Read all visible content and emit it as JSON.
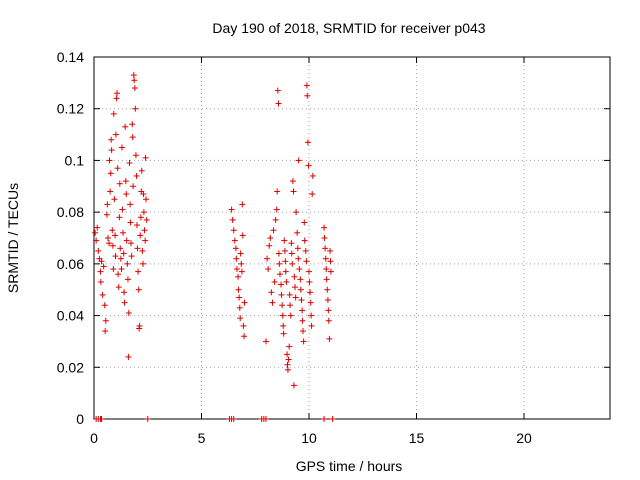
{
  "chart_data": {
    "type": "scatter",
    "title": "Day 190 of 2018, SRMTID for receiver p043",
    "xlabel": "GPS time / hours",
    "ylabel": "SRMTID / TECUs",
    "xlim": [
      0,
      24
    ],
    "ylim": [
      0,
      0.14
    ],
    "xticks": [
      0,
      5,
      10,
      15,
      20
    ],
    "xtick_labels": [
      "0",
      "5",
      "10",
      "15",
      "20"
    ],
    "yticks": [
      0,
      0.02,
      0.04,
      0.06,
      0.08,
      0.1,
      0.12,
      0.14
    ],
    "ytick_labels": [
      "0",
      "0.02",
      "0.04",
      "0.06",
      "0.08",
      "0.1",
      "0.12",
      "0.14"
    ],
    "grid": true,
    "marker": "+",
    "marker_color": "#dd0000",
    "series": [
      {
        "name": "SRMTID p043",
        "points": [
          [
            0.05,
            0.072
          ],
          [
            0.1,
            0.069
          ],
          [
            0.15,
            0.074
          ],
          [
            0.2,
            0.065
          ],
          [
            0.25,
            0.062
          ],
          [
            0.3,
            0.057
          ],
          [
            0.32,
            0.053
          ],
          [
            0.35,
            0.061
          ],
          [
            0.4,
            0.048
          ],
          [
            0.45,
            0.059
          ],
          [
            0.5,
            0.044
          ],
          [
            0.52,
            0.034
          ],
          [
            0.55,
            0.038
          ],
          [
            0.6,
            0.079
          ],
          [
            0.62,
            0.083
          ],
          [
            0.65,
            0.07
          ],
          [
            0.7,
            0.068
          ],
          [
            0.72,
            0.1
          ],
          [
            0.75,
            0.088
          ],
          [
            0.78,
            0.095
          ],
          [
            0.8,
            0.108
          ],
          [
            0.82,
            0.104
          ],
          [
            0.85,
            0.073
          ],
          [
            0.88,
            0.067
          ],
          [
            0.9,
            0.058
          ],
          [
            0.92,
            0.118
          ],
          [
            0.95,
            0.085
          ],
          [
            0.98,
            0.071
          ],
          [
            1.0,
            0.063
          ],
          [
            1.02,
            0.11
          ],
          [
            1.05,
            0.124
          ],
          [
            1.07,
            0.126
          ],
          [
            1.1,
            0.097
          ],
          [
            1.12,
            0.056
          ],
          [
            1.15,
            0.051
          ],
          [
            1.18,
            0.078
          ],
          [
            1.2,
            0.091
          ],
          [
            1.22,
            0.066
          ],
          [
            1.25,
            0.062
          ],
          [
            1.28,
            0.058
          ],
          [
            1.3,
            0.105
          ],
          [
            1.32,
            0.081
          ],
          [
            1.35,
            0.072
          ],
          [
            1.38,
            0.064
          ],
          [
            1.4,
            0.049
          ],
          [
            1.42,
            0.045
          ],
          [
            1.45,
            0.113
          ],
          [
            1.48,
            0.092
          ],
          [
            1.5,
            0.087
          ],
          [
            1.52,
            0.069
          ],
          [
            1.55,
            0.06
          ],
          [
            1.58,
            0.054
          ],
          [
            1.6,
            0.024
          ],
          [
            1.62,
            0.041
          ],
          [
            1.65,
            0.099
          ],
          [
            1.68,
            0.083
          ],
          [
            1.7,
            0.076
          ],
          [
            1.72,
            0.068
          ],
          [
            1.75,
            0.063
          ],
          [
            1.78,
            0.114
          ],
          [
            1.8,
            0.109
          ],
          [
            1.82,
            0.09
          ],
          [
            1.85,
            0.133
          ],
          [
            1.87,
            0.131
          ],
          [
            1.9,
            0.128
          ],
          [
            1.92,
            0.12
          ],
          [
            1.95,
            0.102
          ],
          [
            1.98,
            0.094
          ],
          [
            2.0,
            0.075
          ],
          [
            2.02,
            0.066
          ],
          [
            2.05,
            0.057
          ],
          [
            2.08,
            0.05
          ],
          [
            2.1,
            0.035
          ],
          [
            2.12,
            0.036
          ],
          [
            2.15,
            0.071
          ],
          [
            2.18,
            0.078
          ],
          [
            2.2,
            0.088
          ],
          [
            2.22,
            0.096
          ],
          [
            2.25,
            0.065
          ],
          [
            2.28,
            0.06
          ],
          [
            2.3,
            0.087
          ],
          [
            2.32,
            0.08
          ],
          [
            2.35,
            0.073
          ],
          [
            2.38,
            0.069
          ],
          [
            2.4,
            0.101
          ],
          [
            2.42,
            0.085
          ],
          [
            2.45,
            0.077
          ],
          [
            6.4,
            0.081
          ],
          [
            6.45,
            0.077
          ],
          [
            6.5,
            0.073
          ],
          [
            6.55,
            0.069
          ],
          [
            6.6,
            0.066
          ],
          [
            6.62,
            0.062
          ],
          [
            6.65,
            0.058
          ],
          [
            6.7,
            0.055
          ],
          [
            6.72,
            0.05
          ],
          [
            6.75,
            0.047
          ],
          [
            6.78,
            0.043
          ],
          [
            6.8,
            0.039
          ],
          [
            6.82,
            0.064
          ],
          [
            6.85,
            0.06
          ],
          [
            6.88,
            0.057
          ],
          [
            6.9,
            0.083
          ],
          [
            6.92,
            0.071
          ],
          [
            6.95,
            0.036
          ],
          [
            6.98,
            0.032
          ],
          [
            7.0,
            0.045
          ],
          [
            8.0,
            0.03
          ],
          [
            8.05,
            0.062
          ],
          [
            8.1,
            0.058
          ],
          [
            8.15,
            0.067
          ],
          [
            8.2,
            0.07
          ],
          [
            8.25,
            0.049
          ],
          [
            8.3,
            0.045
          ],
          [
            8.35,
            0.073
          ],
          [
            8.4,
            0.053
          ],
          [
            8.45,
            0.077
          ],
          [
            8.5,
            0.081
          ],
          [
            8.52,
            0.088
          ],
          [
            8.55,
            0.127
          ],
          [
            8.58,
            0.122
          ],
          [
            8.6,
            0.064
          ],
          [
            8.62,
            0.06
          ],
          [
            8.65,
            0.056
          ],
          [
            8.7,
            0.052
          ],
          [
            8.72,
            0.048
          ],
          [
            8.75,
            0.044
          ],
          [
            8.78,
            0.04
          ],
          [
            8.8,
            0.036
          ],
          [
            8.82,
            0.033
          ],
          [
            8.85,
            0.069
          ],
          [
            8.88,
            0.065
          ],
          [
            8.9,
            0.061
          ],
          [
            8.92,
            0.057
          ],
          [
            8.95,
            0.053
          ],
          [
            8.98,
            0.025
          ],
          [
            9.0,
            0.021
          ],
          [
            9.02,
            0.019
          ],
          [
            9.05,
            0.023
          ],
          [
            9.08,
            0.028
          ],
          [
            9.1,
            0.048
          ],
          [
            9.12,
            0.044
          ],
          [
            9.15,
            0.04
          ],
          [
            9.18,
            0.068
          ],
          [
            9.2,
            0.064
          ],
          [
            9.22,
            0.06
          ],
          [
            9.25,
            0.092
          ],
          [
            9.28,
            0.088
          ],
          [
            9.3,
            0.013
          ],
          [
            9.32,
            0.055
          ],
          [
            9.35,
            0.051
          ],
          [
            9.38,
            0.047
          ],
          [
            9.4,
            0.08
          ],
          [
            9.45,
            0.072
          ],
          [
            9.48,
            0.066
          ],
          [
            9.5,
            0.062
          ],
          [
            9.52,
            0.1
          ],
          [
            9.55,
            0.058
          ],
          [
            9.6,
            0.054
          ],
          [
            9.62,
            0.05
          ],
          [
            9.65,
            0.046
          ],
          [
            9.68,
            0.042
          ],
          [
            9.7,
            0.038
          ],
          [
            9.72,
            0.034
          ],
          [
            9.75,
            0.03
          ],
          [
            9.78,
            0.076
          ],
          [
            9.8,
            0.069
          ],
          [
            9.85,
            0.065
          ],
          [
            9.88,
            0.061
          ],
          [
            9.9,
            0.129
          ],
          [
            9.92,
            0.125
          ],
          [
            9.95,
            0.107
          ],
          [
            9.98,
            0.098
          ],
          [
            10.0,
            0.057
          ],
          [
            10.02,
            0.053
          ],
          [
            10.05,
            0.049
          ],
          [
            10.08,
            0.045
          ],
          [
            10.1,
            0.04
          ],
          [
            10.12,
            0.036
          ],
          [
            10.15,
            0.087
          ],
          [
            10.18,
            0.094
          ],
          [
            10.7,
            0.074
          ],
          [
            10.72,
            0.07
          ],
          [
            10.75,
            0.066
          ],
          [
            10.78,
            0.062
          ],
          [
            10.8,
            0.058
          ],
          [
            10.82,
            0.054
          ],
          [
            10.85,
            0.05
          ],
          [
            10.88,
            0.046
          ],
          [
            10.9,
            0.042
          ],
          [
            10.92,
            0.038
          ],
          [
            10.95,
            0.031
          ],
          [
            10.98,
            0.065
          ],
          [
            11.0,
            0.061
          ],
          [
            11.02,
            0.057
          ]
        ]
      }
    ],
    "zero_markers_x": [
      0.1,
      0.2,
      0.3,
      0.35,
      2.5,
      6.3,
      6.4,
      6.5,
      7.8,
      7.9,
      8.0,
      10.7,
      11.1
    ]
  }
}
